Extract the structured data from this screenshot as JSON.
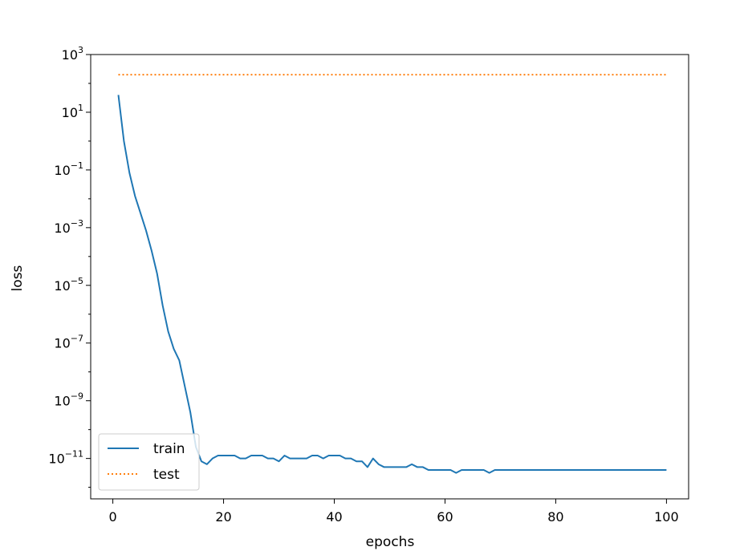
{
  "chart_data": {
    "type": "line",
    "xlabel": "epochs",
    "ylabel": "loss",
    "yscale": "log",
    "xlim": [
      -4,
      104
    ],
    "ylim_exponent": [
      -12.4,
      3.0
    ],
    "xticks": [
      0,
      20,
      40,
      60,
      80,
      100
    ],
    "xtick_labels": [
      "0",
      "20",
      "40",
      "60",
      "80",
      "100"
    ],
    "yticks_exponent": [
      -11,
      -9,
      -7,
      -5,
      -3,
      -1,
      1,
      3
    ],
    "ytick_labels": [
      {
        "base": "10",
        "exp": "−11"
      },
      {
        "base": "10",
        "exp": "−9"
      },
      {
        "base": "10",
        "exp": "−7"
      },
      {
        "base": "10",
        "exp": "−5"
      },
      {
        "base": "10",
        "exp": "−3"
      },
      {
        "base": "10",
        "exp": "−1"
      },
      {
        "base": "10",
        "exp": "1"
      },
      {
        "base": "10",
        "exp": "3"
      }
    ],
    "legend_position": "lower-left",
    "x": [
      1,
      2,
      3,
      4,
      5,
      6,
      7,
      8,
      9,
      10,
      11,
      12,
      13,
      14,
      15,
      16,
      17,
      18,
      19,
      20,
      21,
      22,
      23,
      24,
      25,
      26,
      27,
      28,
      29,
      30,
      31,
      32,
      33,
      34,
      35,
      36,
      37,
      38,
      39,
      40,
      41,
      42,
      43,
      44,
      45,
      46,
      47,
      48,
      49,
      50,
      51,
      52,
      53,
      54,
      55,
      56,
      57,
      58,
      59,
      60,
      61,
      62,
      63,
      64,
      65,
      66,
      67,
      68,
      69,
      70,
      71,
      72,
      73,
      74,
      75,
      76,
      77,
      78,
      79,
      80,
      81,
      82,
      83,
      84,
      85,
      86,
      87,
      88,
      89,
      90,
      91,
      92,
      93,
      94,
      95,
      96,
      97,
      98,
      99,
      100
    ],
    "series": [
      {
        "name": "train",
        "color": "#1f77b4",
        "style": "solid",
        "y_exponent": [
          1.6,
          0.0,
          -1.1,
          -1.9,
          -2.5,
          -3.1,
          -3.8,
          -4.6,
          -5.7,
          -6.6,
          -7.2,
          -7.6,
          -8.5,
          -9.4,
          -10.6,
          -11.1,
          -11.2,
          -11.0,
          -10.9,
          -10.9,
          -10.9,
          -10.9,
          -11.0,
          -11.0,
          -10.9,
          -10.9,
          -10.9,
          -11.0,
          -11.0,
          -11.1,
          -10.9,
          -11.0,
          -11.0,
          -11.0,
          -11.0,
          -10.9,
          -10.9,
          -11.0,
          -10.9,
          -10.9,
          -10.9,
          -11.0,
          -11.0,
          -11.1,
          -11.1,
          -11.3,
          -11.0,
          -11.2,
          -11.3,
          -11.3,
          -11.3,
          -11.3,
          -11.3,
          -11.2,
          -11.3,
          -11.3,
          -11.4,
          -11.4,
          -11.4,
          -11.4,
          -11.4,
          -11.5,
          -11.4,
          -11.4,
          -11.4,
          -11.4,
          -11.4,
          -11.5,
          -11.4,
          -11.4,
          -11.4,
          -11.4,
          -11.4,
          -11.4,
          -11.4,
          -11.4,
          -11.4,
          -11.4,
          -11.4,
          -11.4,
          -11.4,
          -11.4,
          -11.4,
          -11.4,
          -11.4,
          -11.4,
          -11.4,
          -11.4,
          -11.4,
          -11.4,
          -11.4,
          -11.4,
          -11.4,
          -11.4,
          -11.4,
          -11.4,
          -11.4,
          -11.4,
          -11.4,
          -11.4
        ]
      },
      {
        "name": "test",
        "color": "#ff7f0e",
        "style": "dotted",
        "y_exponent": [
          2.3,
          2.3,
          2.3,
          2.3,
          2.3,
          2.3,
          2.3,
          2.3,
          2.3,
          2.3,
          2.3,
          2.3,
          2.3,
          2.3,
          2.3,
          2.3,
          2.3,
          2.3,
          2.3,
          2.3,
          2.3,
          2.3,
          2.3,
          2.3,
          2.3,
          2.3,
          2.3,
          2.3,
          2.3,
          2.3,
          2.3,
          2.3,
          2.3,
          2.3,
          2.3,
          2.3,
          2.3,
          2.3,
          2.3,
          2.3,
          2.3,
          2.3,
          2.3,
          2.3,
          2.3,
          2.3,
          2.3,
          2.3,
          2.3,
          2.3,
          2.3,
          2.3,
          2.3,
          2.3,
          2.3,
          2.3,
          2.3,
          2.3,
          2.3,
          2.3,
          2.3,
          2.3,
          2.3,
          2.3,
          2.3,
          2.3,
          2.3,
          2.3,
          2.3,
          2.3,
          2.3,
          2.3,
          2.3,
          2.3,
          2.3,
          2.3,
          2.3,
          2.3,
          2.3,
          2.3,
          2.3,
          2.3,
          2.3,
          2.3,
          2.3,
          2.3,
          2.3,
          2.3,
          2.3,
          2.3,
          2.3,
          2.3,
          2.3,
          2.3,
          2.3,
          2.3,
          2.3,
          2.3,
          2.3,
          2.3
        ]
      }
    ]
  }
}
